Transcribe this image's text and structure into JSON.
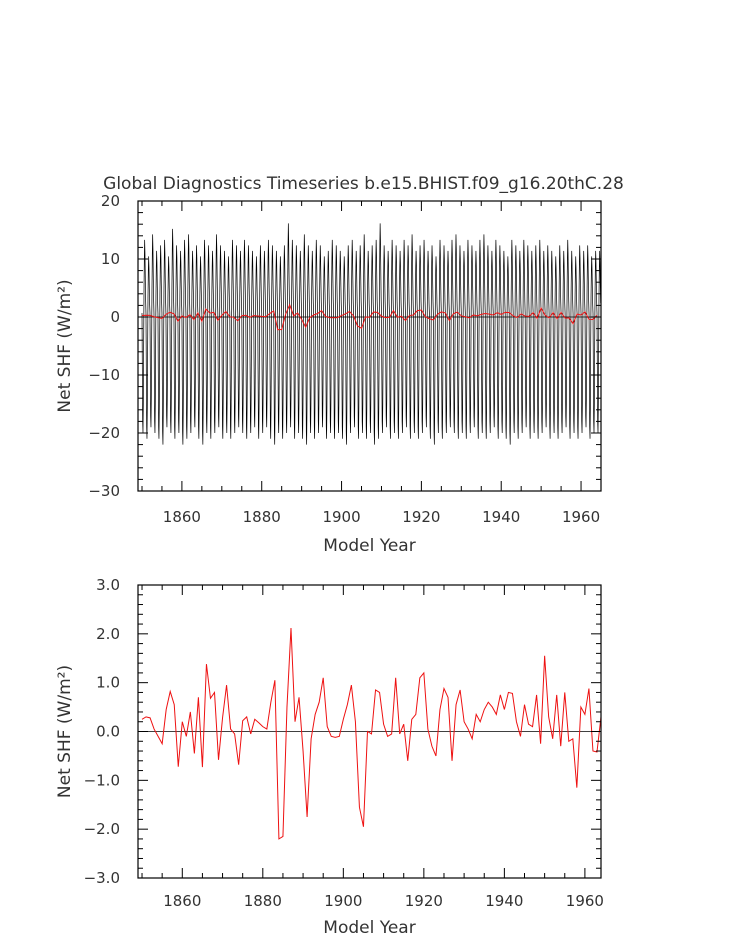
{
  "chart_data": [
    {
      "type": "line",
      "title": "Global Diagnostics Timeseries b.e15.BHIST.f09_g16.20thC.28",
      "xlabel": "Model Year",
      "ylabel": "Net SHF (W/m²)",
      "xlim": [
        1849,
        1965
      ],
      "ylim": [
        -30,
        20
      ],
      "xticks": [
        "1860",
        "1880",
        "1900",
        "1920",
        "1940",
        "1960"
      ],
      "yticks": [
        "20",
        "10",
        "0",
        "−10",
        "−20",
        "−30"
      ],
      "zero_line": true,
      "series": [
        {
          "kind": "monthly",
          "color": "#000000",
          "x_start": 1850.0,
          "x_step": 0.0833333,
          "monthly_pattern_fraction_of_peak": [
            0.05,
            -0.45,
            -0.9,
            -1.0,
            -0.75,
            -0.25,
            0.3,
            0.72,
            0.95,
            0.78,
            0.45,
            0.2
          ],
          "annual_peak_max": [
            14,
            11,
            15,
            12,
            13,
            14,
            11,
            16,
            13,
            12,
            14,
            15,
            12,
            13,
            11,
            14,
            13,
            12,
            15,
            13,
            12,
            11,
            14,
            13,
            12,
            14,
            13,
            12,
            11,
            13,
            12,
            14,
            13,
            12,
            11,
            13,
            17,
            14,
            13,
            12,
            15,
            13,
            12,
            14,
            13,
            11,
            12,
            14,
            13,
            12,
            11,
            13,
            14,
            12,
            13,
            15,
            12,
            13,
            14,
            17,
            13,
            12,
            14,
            13,
            12,
            14,
            13,
            15,
            12,
            13,
            14,
            12,
            13,
            11,
            14,
            13,
            12,
            14,
            15,
            13,
            12,
            14,
            13,
            12,
            14,
            15,
            13,
            12,
            14,
            13,
            12,
            11,
            14,
            13,
            12,
            14,
            13,
            12,
            13,
            14,
            12,
            13,
            12,
            11,
            13,
            12,
            14,
            12,
            11,
            13,
            12,
            13,
            11,
            12,
            12
          ],
          "annual_trough_min": [
            -20,
            -21,
            -19,
            -20,
            -21,
            -22,
            -19,
            -20,
            -21,
            -20,
            -22,
            -21,
            -20,
            -19,
            -21,
            -22,
            -20,
            -21,
            -20,
            -19,
            -21,
            -20,
            -21,
            -20,
            -19,
            -20,
            -21,
            -20,
            -19,
            -21,
            -20,
            -19,
            -21,
            -22,
            -20,
            -21,
            -20,
            -19,
            -21,
            -20,
            -21,
            -22,
            -20,
            -21,
            -20,
            -19,
            -21,
            -20,
            -21,
            -20,
            -21,
            -22,
            -20,
            -19,
            -21,
            -20,
            -21,
            -20,
            -22,
            -21,
            -20,
            -19,
            -21,
            -20,
            -21,
            -20,
            -19,
            -21,
            -20,
            -21,
            -20,
            -19,
            -21,
            -22,
            -20,
            -21,
            -20,
            -19,
            -20,
            -21,
            -20,
            -21,
            -20,
            -19,
            -21,
            -20,
            -21,
            -20,
            -19,
            -21,
            -20,
            -21,
            -22,
            -20,
            -21,
            -20,
            -19,
            -21,
            -20,
            -21,
            -20,
            -19,
            -21,
            -20,
            -21,
            -20,
            -19,
            -21,
            -20,
            -21,
            -20,
            -19,
            -21,
            -20,
            -20
          ]
        },
        {
          "kind": "annual",
          "color": "#ee1111",
          "x": [
            1850,
            1851,
            1852,
            1853,
            1854,
            1855,
            1856,
            1857,
            1858,
            1859,
            1860,
            1861,
            1862,
            1863,
            1864,
            1865,
            1866,
            1867,
            1868,
            1869,
            1870,
            1871,
            1872,
            1873,
            1874,
            1875,
            1876,
            1877,
            1878,
            1879,
            1880,
            1881,
            1882,
            1883,
            1884,
            1885,
            1886,
            1887,
            1888,
            1889,
            1890,
            1891,
            1892,
            1893,
            1894,
            1895,
            1896,
            1897,
            1898,
            1899,
            1900,
            1901,
            1902,
            1903,
            1904,
            1905,
            1906,
            1907,
            1908,
            1909,
            1910,
            1911,
            1912,
            1913,
            1914,
            1915,
            1916,
            1917,
            1918,
            1919,
            1920,
            1921,
            1922,
            1923,
            1924,
            1925,
            1926,
            1927,
            1928,
            1929,
            1930,
            1931,
            1932,
            1933,
            1934,
            1935,
            1936,
            1937,
            1938,
            1939,
            1940,
            1941,
            1942,
            1943,
            1944,
            1945,
            1946,
            1947,
            1948,
            1949,
            1950,
            1951,
            1952,
            1953,
            1954,
            1955,
            1956,
            1957,
            1958,
            1959,
            1960,
            1961,
            1962,
            1963,
            1964
          ],
          "values": [
            0.25,
            0.3,
            0.28,
            0.05,
            -0.1,
            -0.25,
            0.45,
            0.82,
            0.55,
            -0.72,
            0.2,
            -0.1,
            0.4,
            -0.45,
            0.7,
            -0.73,
            1.38,
            0.68,
            0.8,
            -0.58,
            0.28,
            0.95,
            0.05,
            -0.05,
            -0.68,
            0.22,
            0.3,
            -0.05,
            0.25,
            0.18,
            0.1,
            0.05,
            0.6,
            1.05,
            -2.2,
            -2.15,
            0.5,
            2.12,
            0.2,
            0.7,
            -0.4,
            -1.75,
            -0.15,
            0.35,
            0.6,
            1.1,
            0.1,
            -0.1,
            -0.12,
            -0.1,
            0.25,
            0.55,
            0.95,
            0.2,
            -1.55,
            -1.95,
            0.0,
            -0.05,
            0.85,
            0.8,
            0.15,
            -0.1,
            -0.05,
            1.1,
            -0.05,
            0.15,
            -0.6,
            0.25,
            0.35,
            1.1,
            1.2,
            0.05,
            -0.3,
            -0.5,
            0.45,
            0.88,
            0.7,
            -0.6,
            0.55,
            0.85,
            0.2,
            0.05,
            -0.15,
            0.35,
            0.2,
            0.45,
            0.6,
            0.5,
            0.35,
            0.75,
            0.45,
            0.8,
            0.78,
            0.2,
            -0.1,
            0.55,
            0.15,
            0.1,
            0.75,
            -0.25,
            1.55,
            0.3,
            -0.15,
            0.75,
            -0.3,
            0.8,
            -0.2,
            -0.15,
            -1.15,
            0.5,
            0.35,
            0.88,
            -0.4,
            -0.42,
            0.3
          ]
        }
      ]
    },
    {
      "type": "line",
      "xlabel": "Model Year",
      "ylabel": "Net SHF (W/m²)",
      "xlim": [
        1849,
        1964
      ],
      "ylim": [
        -3.0,
        3.0
      ],
      "xticks": [
        "1860",
        "1880",
        "1900",
        "1920",
        "1940",
        "1960"
      ],
      "yticks": [
        "3.0",
        "2.0",
        "1.0",
        "0.0",
        "−1.0",
        "−2.0",
        "−3.0"
      ],
      "zero_line": true,
      "series": [
        {
          "kind": "annual",
          "color": "#ee1111",
          "x": [
            1850,
            1851,
            1852,
            1853,
            1854,
            1855,
            1856,
            1857,
            1858,
            1859,
            1860,
            1861,
            1862,
            1863,
            1864,
            1865,
            1866,
            1867,
            1868,
            1869,
            1870,
            1871,
            1872,
            1873,
            1874,
            1875,
            1876,
            1877,
            1878,
            1879,
            1880,
            1881,
            1882,
            1883,
            1884,
            1885,
            1886,
            1887,
            1888,
            1889,
            1890,
            1891,
            1892,
            1893,
            1894,
            1895,
            1896,
            1897,
            1898,
            1899,
            1900,
            1901,
            1902,
            1903,
            1904,
            1905,
            1906,
            1907,
            1908,
            1909,
            1910,
            1911,
            1912,
            1913,
            1914,
            1915,
            1916,
            1917,
            1918,
            1919,
            1920,
            1921,
            1922,
            1923,
            1924,
            1925,
            1926,
            1927,
            1928,
            1929,
            1930,
            1931,
            1932,
            1933,
            1934,
            1935,
            1936,
            1937,
            1938,
            1939,
            1940,
            1941,
            1942,
            1943,
            1944,
            1945,
            1946,
            1947,
            1948,
            1949,
            1950,
            1951,
            1952,
            1953,
            1954,
            1955,
            1956,
            1957,
            1958,
            1959,
            1960,
            1961,
            1962,
            1963,
            1964
          ],
          "values": [
            0.25,
            0.3,
            0.28,
            0.05,
            -0.1,
            -0.25,
            0.45,
            0.82,
            0.55,
            -0.72,
            0.2,
            -0.1,
            0.4,
            -0.45,
            0.7,
            -0.73,
            1.38,
            0.68,
            0.8,
            -0.58,
            0.28,
            0.95,
            0.05,
            -0.05,
            -0.68,
            0.22,
            0.3,
            -0.05,
            0.25,
            0.18,
            0.1,
            0.05,
            0.6,
            1.05,
            -2.2,
            -2.15,
            0.5,
            2.12,
            0.2,
            0.7,
            -0.4,
            -1.75,
            -0.15,
            0.35,
            0.6,
            1.1,
            0.1,
            -0.1,
            -0.12,
            -0.1,
            0.25,
            0.55,
            0.95,
            0.2,
            -1.55,
            -1.95,
            0.0,
            -0.05,
            0.85,
            0.8,
            0.15,
            -0.1,
            -0.05,
            1.1,
            -0.05,
            0.15,
            -0.6,
            0.25,
            0.35,
            1.1,
            1.2,
            0.05,
            -0.3,
            -0.5,
            0.45,
            0.88,
            0.7,
            -0.6,
            0.55,
            0.85,
            0.2,
            0.05,
            -0.15,
            0.35,
            0.2,
            0.45,
            0.6,
            0.5,
            0.35,
            0.75,
            0.45,
            0.8,
            0.78,
            0.2,
            -0.1,
            0.55,
            0.15,
            0.1,
            0.75,
            -0.25,
            1.55,
            0.3,
            -0.15,
            0.75,
            -0.3,
            0.8,
            -0.2,
            -0.15,
            -1.15,
            0.5,
            0.35,
            0.88,
            -0.4,
            -0.42,
            0.3
          ]
        }
      ]
    }
  ]
}
